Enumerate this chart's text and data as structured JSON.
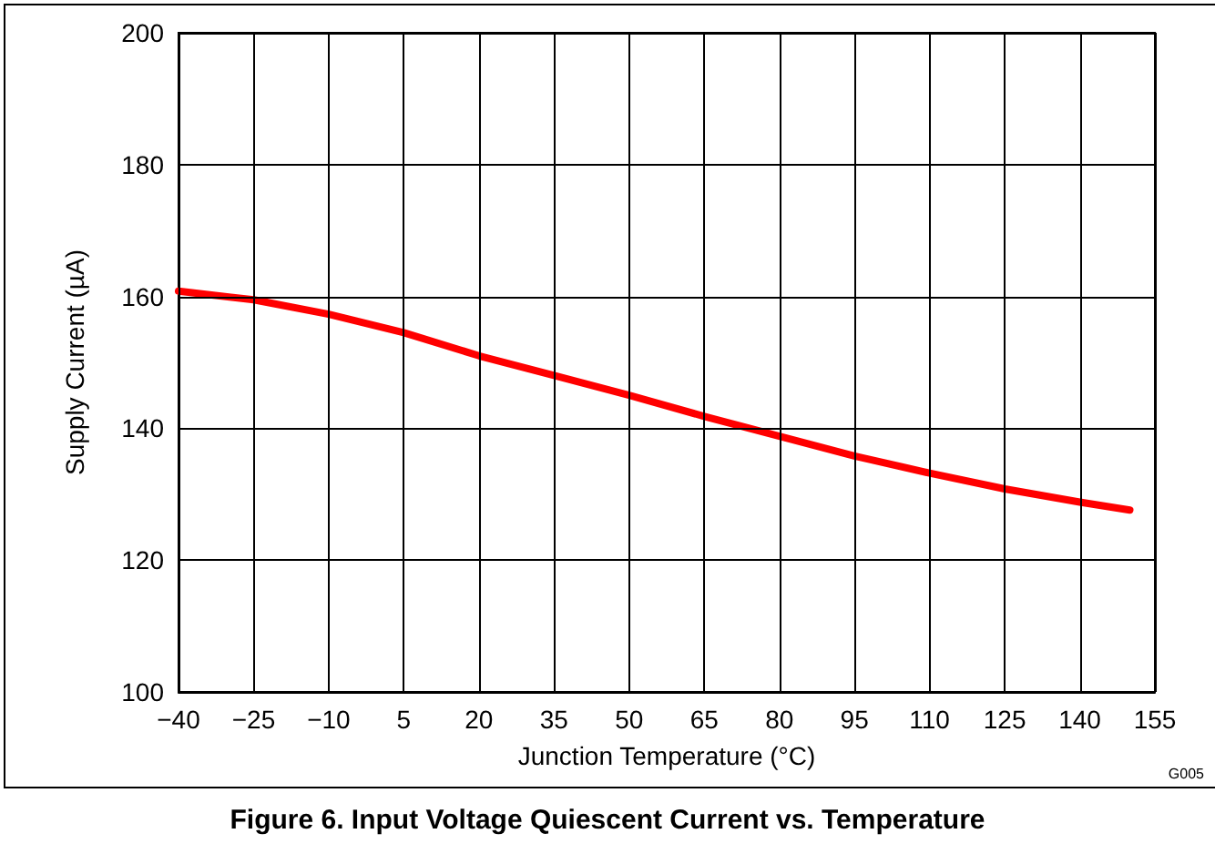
{
  "chart_data": {
    "type": "line",
    "title": "Figure 6. Input Voltage Quiescent Current vs. Temperature",
    "xlabel": "Junction Temperature (°C)",
    "ylabel": "Supply Current (µA)",
    "annotations": [
      "G005"
    ],
    "x": [
      -40,
      -25,
      -10,
      5,
      20,
      35,
      50,
      65,
      80,
      95,
      110,
      125,
      140,
      150
    ],
    "series": [
      {
        "color": "#ff0000",
        "values": [
          160.8,
          159.5,
          157.3,
          154.5,
          151,
          148,
          145,
          141.8,
          138.8,
          135.8,
          133.2,
          130.8,
          128.8,
          127.6
        ]
      }
    ],
    "xlim": [
      -40,
      155
    ],
    "xticks": [
      {
        "value": -40,
        "label": "−40"
      },
      {
        "value": -25,
        "label": "−25"
      },
      {
        "value": -10,
        "label": "−10"
      },
      5,
      20,
      35,
      50,
      65,
      80,
      95,
      110,
      125,
      140,
      155
    ],
    "ylim": [
      100,
      200
    ],
    "yticks": [
      100,
      120,
      140,
      160,
      180,
      200
    ],
    "grid": true,
    "marker": "none"
  }
}
